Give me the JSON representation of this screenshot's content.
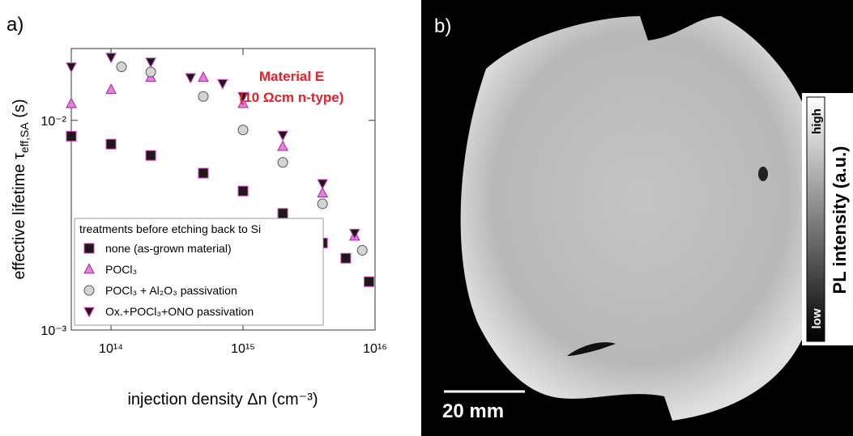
{
  "chart_data": {
    "type": "scatter",
    "panel_label": "a)",
    "annotation": [
      "Material E",
      "(10 Ωcm n-type)"
    ],
    "annotation_color": "#e8202a",
    "xlabel": "injection density Δn (cm⁻³)",
    "ylabel": {
      "text": "effective lifetime  τ",
      "sub": "eff,SA",
      "after": " (s)"
    },
    "xscale": "log",
    "yscale": "log",
    "xlim": [
      50000000000000.0,
      1e+16
    ],
    "ylim": [
      0.001,
      0.022
    ],
    "xticks": [
      {
        "value": 100000000000000.0,
        "label": "10¹⁴"
      },
      {
        "value": 1000000000000000.0,
        "label": "10¹⁵"
      },
      {
        "value": 1e+16,
        "label": "10¹⁶"
      }
    ],
    "yticks": [
      {
        "value": 0.001,
        "label": "10⁻³"
      },
      {
        "value": 0.01,
        "label": "10⁻²"
      }
    ],
    "legend_title": "treatments before etching back to Si",
    "legend": "lower left",
    "series": [
      {
        "name": "none (as-grown material)",
        "marker": "square",
        "color": "#1a1a1a",
        "edgecolor": "#e040c0",
        "x": [
          50000000000000.0,
          100000000000000.0,
          200000000000000.0,
          500000000000000.0,
          1000000000000000.0,
          2000000000000000.0,
          4000000000000000.0,
          6000000000000000.0,
          9000000000000000.0
        ],
        "values": [
          0.0084,
          0.0077,
          0.0068,
          0.0056,
          0.0046,
          0.0036,
          0.0026,
          0.0022,
          0.0017
        ]
      },
      {
        "name": "POCl₃",
        "marker": "triangle-up",
        "color": "#ec7be4",
        "edgecolor": "#9a2d92",
        "x": [
          50000000000000.0,
          100000000000000.0,
          200000000000000.0,
          500000000000000.0,
          1000000000000000.0,
          2000000000000000.0,
          4000000000000000.0,
          7000000000000000.0
        ],
        "values": [
          0.012,
          0.014,
          0.016,
          0.016,
          0.012,
          0.0075,
          0.0045,
          0.0028
        ]
      },
      {
        "name": "POCl₃ + Al₂O₃ passivation",
        "marker": "circle",
        "color": "#d4d4d4",
        "edgecolor": "#555555",
        "x": [
          120000000000000.0,
          200000000000000.0,
          500000000000000.0,
          1000000000000000.0,
          2000000000000000.0,
          4000000000000000.0,
          8000000000000000.0
        ],
        "values": [
          0.018,
          0.017,
          0.013,
          0.009,
          0.0063,
          0.004,
          0.0024
        ]
      },
      {
        "name": "Ox.+POCl₃+ONO passivation",
        "marker": "triangle-down",
        "color": "#1a1a1a",
        "edgecolor": "#e040c0",
        "x": [
          50000000000000.0,
          100000000000000.0,
          200000000000000.0,
          400000000000000.0,
          700000000000000.0,
          1000000000000000.0,
          2000000000000000.0,
          4000000000000000.0,
          7000000000000000.0
        ],
        "values": [
          0.018,
          0.02,
          0.019,
          0.016,
          0.015,
          0.013,
          0.0085,
          0.005,
          0.0029
        ]
      }
    ]
  },
  "image": {
    "panel_label": "b)",
    "scale_bar": "20 mm",
    "colorbar": {
      "low": "low",
      "high": "high",
      "label": "PL intensity (a.u.)"
    }
  }
}
